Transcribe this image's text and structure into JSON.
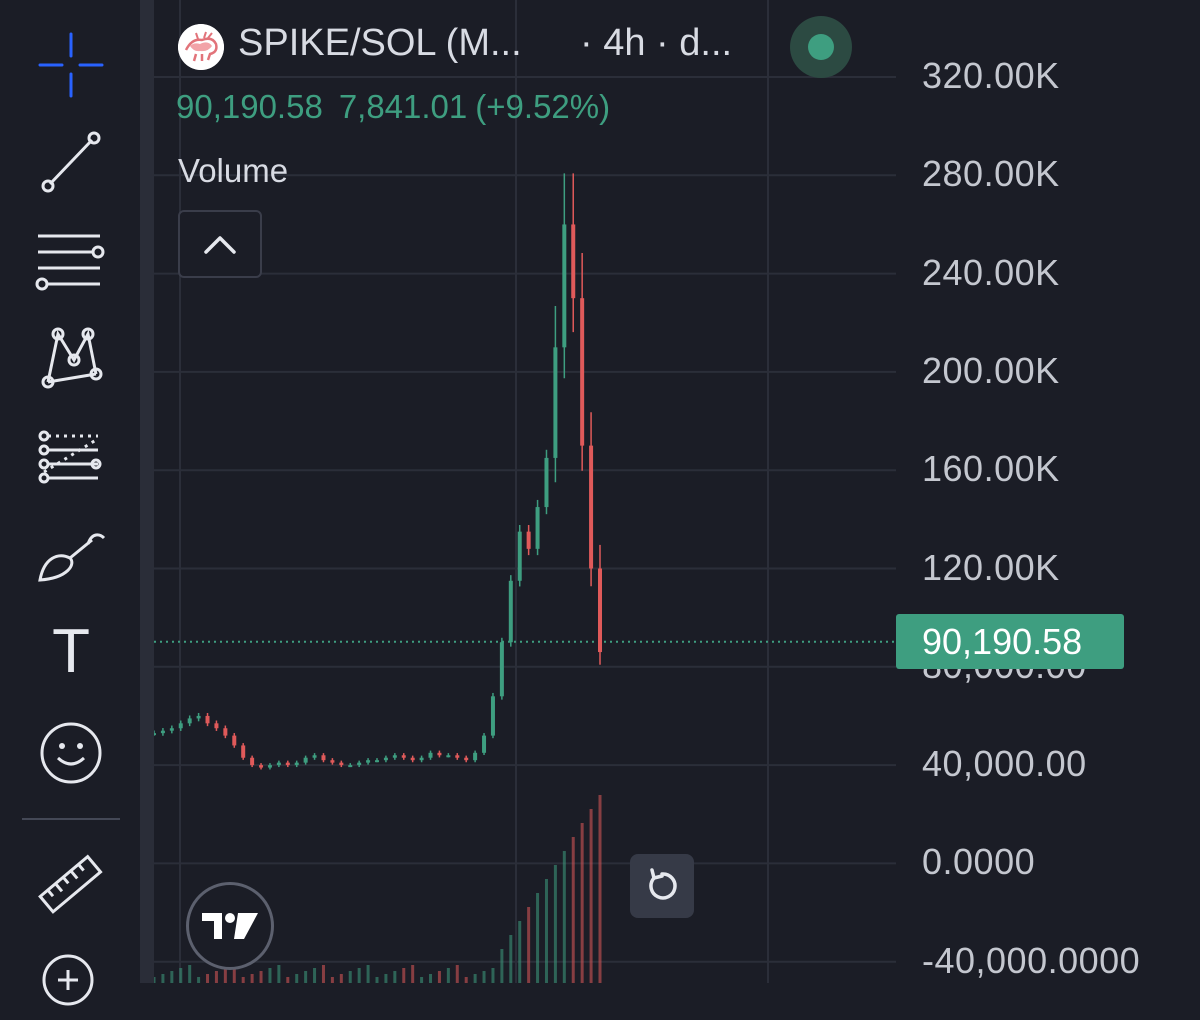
{
  "legend": {
    "symbol": "SPIKE/SOL (M...",
    "interval": "· 4h · d...",
    "last": "90,190.58",
    "change": "7,841.01",
    "change_pct": "(+9.52%)",
    "indicator": "Volume"
  },
  "price_scale": {
    "ticks": [
      "320.00K",
      "280.00K",
      "240.00K",
      "200.00K",
      "160.00K",
      "120.00K",
      "80,000.00",
      "40,000.00",
      "0.0000",
      "-40,000.0000"
    ],
    "last_price_label": "90,190.58"
  },
  "colors": {
    "up": "#3e9e80",
    "down": "#e05a5a",
    "background": "#1b1d26",
    "accent": "#2962ff"
  },
  "toolbar": {
    "tools": [
      "crosshair-icon",
      "trend-line-icon",
      "horizontal-lines-icon",
      "pattern-icon",
      "fib-icon",
      "brush-icon",
      "text-tool",
      "emoji-icon",
      "ruler-icon",
      "zoom-in-icon"
    ],
    "text_tool_label": "T"
  },
  "chart_data": {
    "type": "candlestick",
    "interval": "4h",
    "last_price": 90190.58,
    "y_range": [
      -40000,
      320000
    ],
    "approx_close_series": [
      53000,
      54000,
      55000,
      57000,
      59000,
      60000,
      57000,
      55000,
      52000,
      48000,
      43000,
      40000,
      39000,
      40000,
      41000,
      40000,
      41000,
      43000,
      44000,
      42000,
      41000,
      40000,
      40000,
      41000,
      42000,
      42000,
      43000,
      44000,
      43000,
      42000,
      43000,
      45000,
      44000,
      44000,
      43000,
      42000,
      45000,
      52000,
      68000,
      90000,
      115000,
      135000,
      128000,
      145000,
      165000,
      210000,
      260000,
      230000,
      170000,
      120000,
      86000
    ]
  }
}
